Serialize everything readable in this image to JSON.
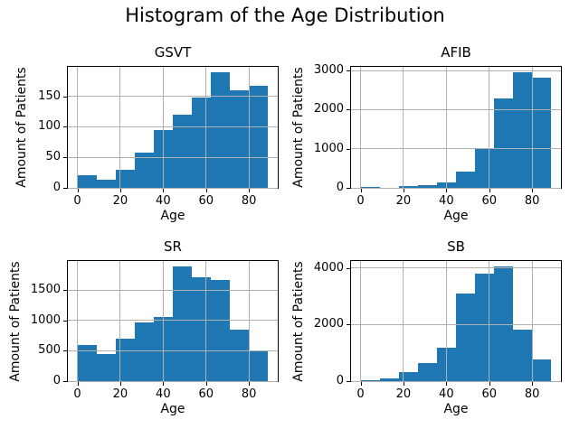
{
  "figure": {
    "title": "Histogram of the Age Distribution"
  },
  "colors": {
    "bar": "#1f77b4",
    "grid": "#b0b0b0",
    "spine": "#000000",
    "text": "#000000"
  },
  "chart_data": [
    {
      "type": "bar",
      "subtype": "histogram",
      "title": "GSVT",
      "xlabel": "Age",
      "ylabel": "Amount of Patients",
      "bin_edges": [
        0,
        8.9,
        17.8,
        26.7,
        35.6,
        44.5,
        53.4,
        62.3,
        71.2,
        80.1,
        89
      ],
      "counts": [
        21,
        14,
        30,
        58,
        95,
        120,
        148,
        189,
        160,
        168
      ],
      "xticks": [
        0,
        20,
        40,
        60,
        80
      ],
      "yticks": [
        0,
        50,
        100,
        150
      ],
      "xlim": [
        -4.45,
        93.45
      ],
      "ylim": [
        0,
        198.45
      ],
      "grid": true,
      "legend": false
    },
    {
      "type": "bar",
      "subtype": "histogram",
      "title": "AFIB",
      "xlabel": "Age",
      "ylabel": "Amount of Patients",
      "bin_edges": [
        0,
        8.9,
        17.8,
        26.7,
        35.6,
        44.5,
        53.4,
        62.3,
        71.2,
        80.1,
        89
      ],
      "counts": [
        25,
        8,
        35,
        60,
        140,
        420,
        1010,
        2280,
        2950,
        2830
      ],
      "xticks": [
        0,
        20,
        40,
        60,
        80
      ],
      "yticks": [
        0,
        1000,
        2000,
        3000
      ],
      "xlim": [
        -4.45,
        93.45
      ],
      "ylim": [
        0,
        3097.5
      ],
      "grid": true,
      "legend": false
    },
    {
      "type": "bar",
      "subtype": "histogram",
      "title": "SR",
      "xlabel": "Age",
      "ylabel": "Amount of Patients",
      "bin_edges": [
        0,
        8.9,
        17.8,
        26.7,
        35.6,
        44.5,
        53.4,
        62.3,
        71.2,
        80.1,
        89
      ],
      "counts": [
        600,
        450,
        700,
        970,
        1060,
        1890,
        1720,
        1670,
        850,
        510
      ],
      "xticks": [
        0,
        20,
        40,
        60,
        80
      ],
      "yticks": [
        0,
        500,
        1000,
        1500
      ],
      "xlim": [
        -4.45,
        93.45
      ],
      "ylim": [
        0,
        1984.5
      ],
      "grid": true,
      "legend": false
    },
    {
      "type": "bar",
      "subtype": "histogram",
      "title": "SB",
      "xlabel": "Age",
      "ylabel": "Amount of Patients",
      "bin_edges": [
        0,
        8.9,
        17.8,
        26.7,
        35.6,
        44.5,
        53.4,
        62.3,
        71.2,
        80.1,
        89
      ],
      "counts": [
        40,
        90,
        320,
        650,
        1170,
        3110,
        3790,
        4050,
        1820,
        780
      ],
      "xticks": [
        0,
        20,
        40,
        60,
        80
      ],
      "yticks": [
        0,
        2000,
        4000
      ],
      "xlim": [
        -4.45,
        93.45
      ],
      "ylim": [
        0,
        4252.5
      ],
      "grid": true,
      "legend": false
    }
  ]
}
